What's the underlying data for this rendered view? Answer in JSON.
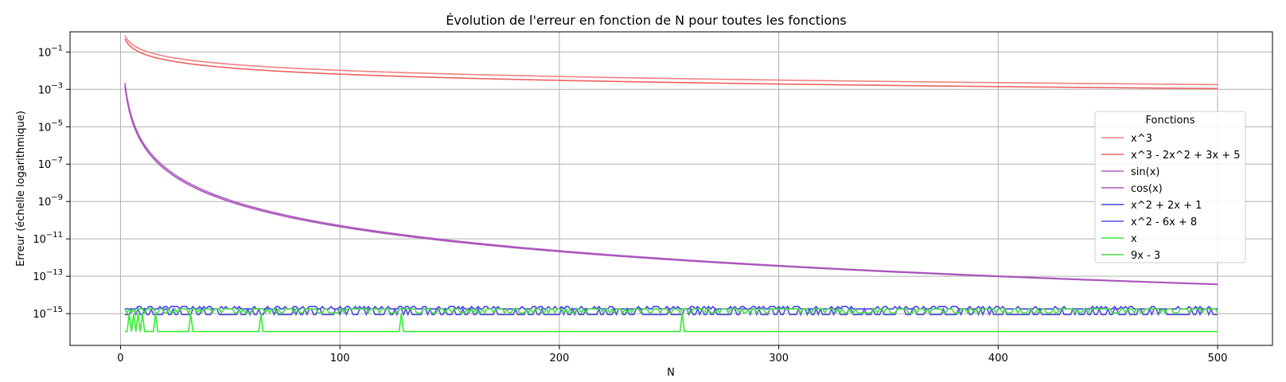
{
  "chart_data": {
    "type": "line",
    "title": "Évolution de l'erreur en fonction de N pour toutes les fonctions",
    "xlabel": "N",
    "ylabel": "Erreur (échelle logarithmique)",
    "yscale": "log",
    "xlim": [
      -23,
      525
    ],
    "ylim": [
      2e-17,
      1.2
    ],
    "xticks": [
      0,
      100,
      200,
      300,
      400,
      500
    ],
    "yticks": [
      {
        "value": 0.1,
        "base": "10",
        "exp": "−1"
      },
      {
        "value": 0.001,
        "base": "10",
        "exp": "−3"
      },
      {
        "value": 1e-05,
        "base": "10",
        "exp": "−5"
      },
      {
        "value": 1e-07,
        "base": "10",
        "exp": "−7"
      },
      {
        "value": 1e-09,
        "base": "10",
        "exp": "−9"
      },
      {
        "value": 1e-11,
        "base": "10",
        "exp": "−11"
      },
      {
        "value": 1e-13,
        "base": "10",
        "exp": "−13"
      },
      {
        "value": 1e-15,
        "base": "10",
        "exp": "−15"
      }
    ],
    "grid": true,
    "legend": {
      "title": "Fonctions",
      "placement": "right"
    },
    "series": [
      {
        "name": "x^3",
        "color": "#f08080",
        "kind": "power",
        "x": [
          2,
          500
        ],
        "y": [
          0.75,
          0.0018
        ],
        "exponent": 1.1
      },
      {
        "name": "x^3 - 2x^2 + 3x + 5",
        "color": "#f06060",
        "kind": "power",
        "x": [
          2,
          500
        ],
        "y": [
          0.5,
          0.0011
        ],
        "exponent": 1.1
      },
      {
        "name": "sin(x)",
        "color": "#b05cc0",
        "kind": "power",
        "x": [
          2,
          500
        ],
        "y": [
          0.0022,
          3.8e-14
        ],
        "exponent": 3
      },
      {
        "name": "cos(x)",
        "color": "#a855b8",
        "kind": "power",
        "x": [
          2,
          500
        ],
        "y": [
          0.0015,
          3.6e-14
        ],
        "exponent": 3
      },
      {
        "name": "x^2 + 2x + 1",
        "color": "#4444ee",
        "kind": "noise",
        "x": [
          2,
          500
        ],
        "levels": [
          1.78e-15,
          2.4e-15
        ]
      },
      {
        "name": "x^2 - 6x + 8",
        "color": "#5050d8",
        "kind": "noise",
        "x": [
          2,
          500
        ],
        "levels": [
          8.9e-16,
          1.78e-15
        ]
      },
      {
        "name": "x",
        "color": "#33ee33",
        "kind": "steps",
        "low": 1.1e-16,
        "high": 1e-15,
        "spikes": [
          4,
          6,
          8,
          10,
          16,
          32,
          64,
          128,
          256
        ],
        "x": [
          2,
          500
        ]
      },
      {
        "name": "9x - 3",
        "color": "#44dd44",
        "kind": "noise",
        "x": [
          2,
          500
        ],
        "levels": [
          1.78e-15,
          1.1e-15
        ]
      }
    ]
  }
}
